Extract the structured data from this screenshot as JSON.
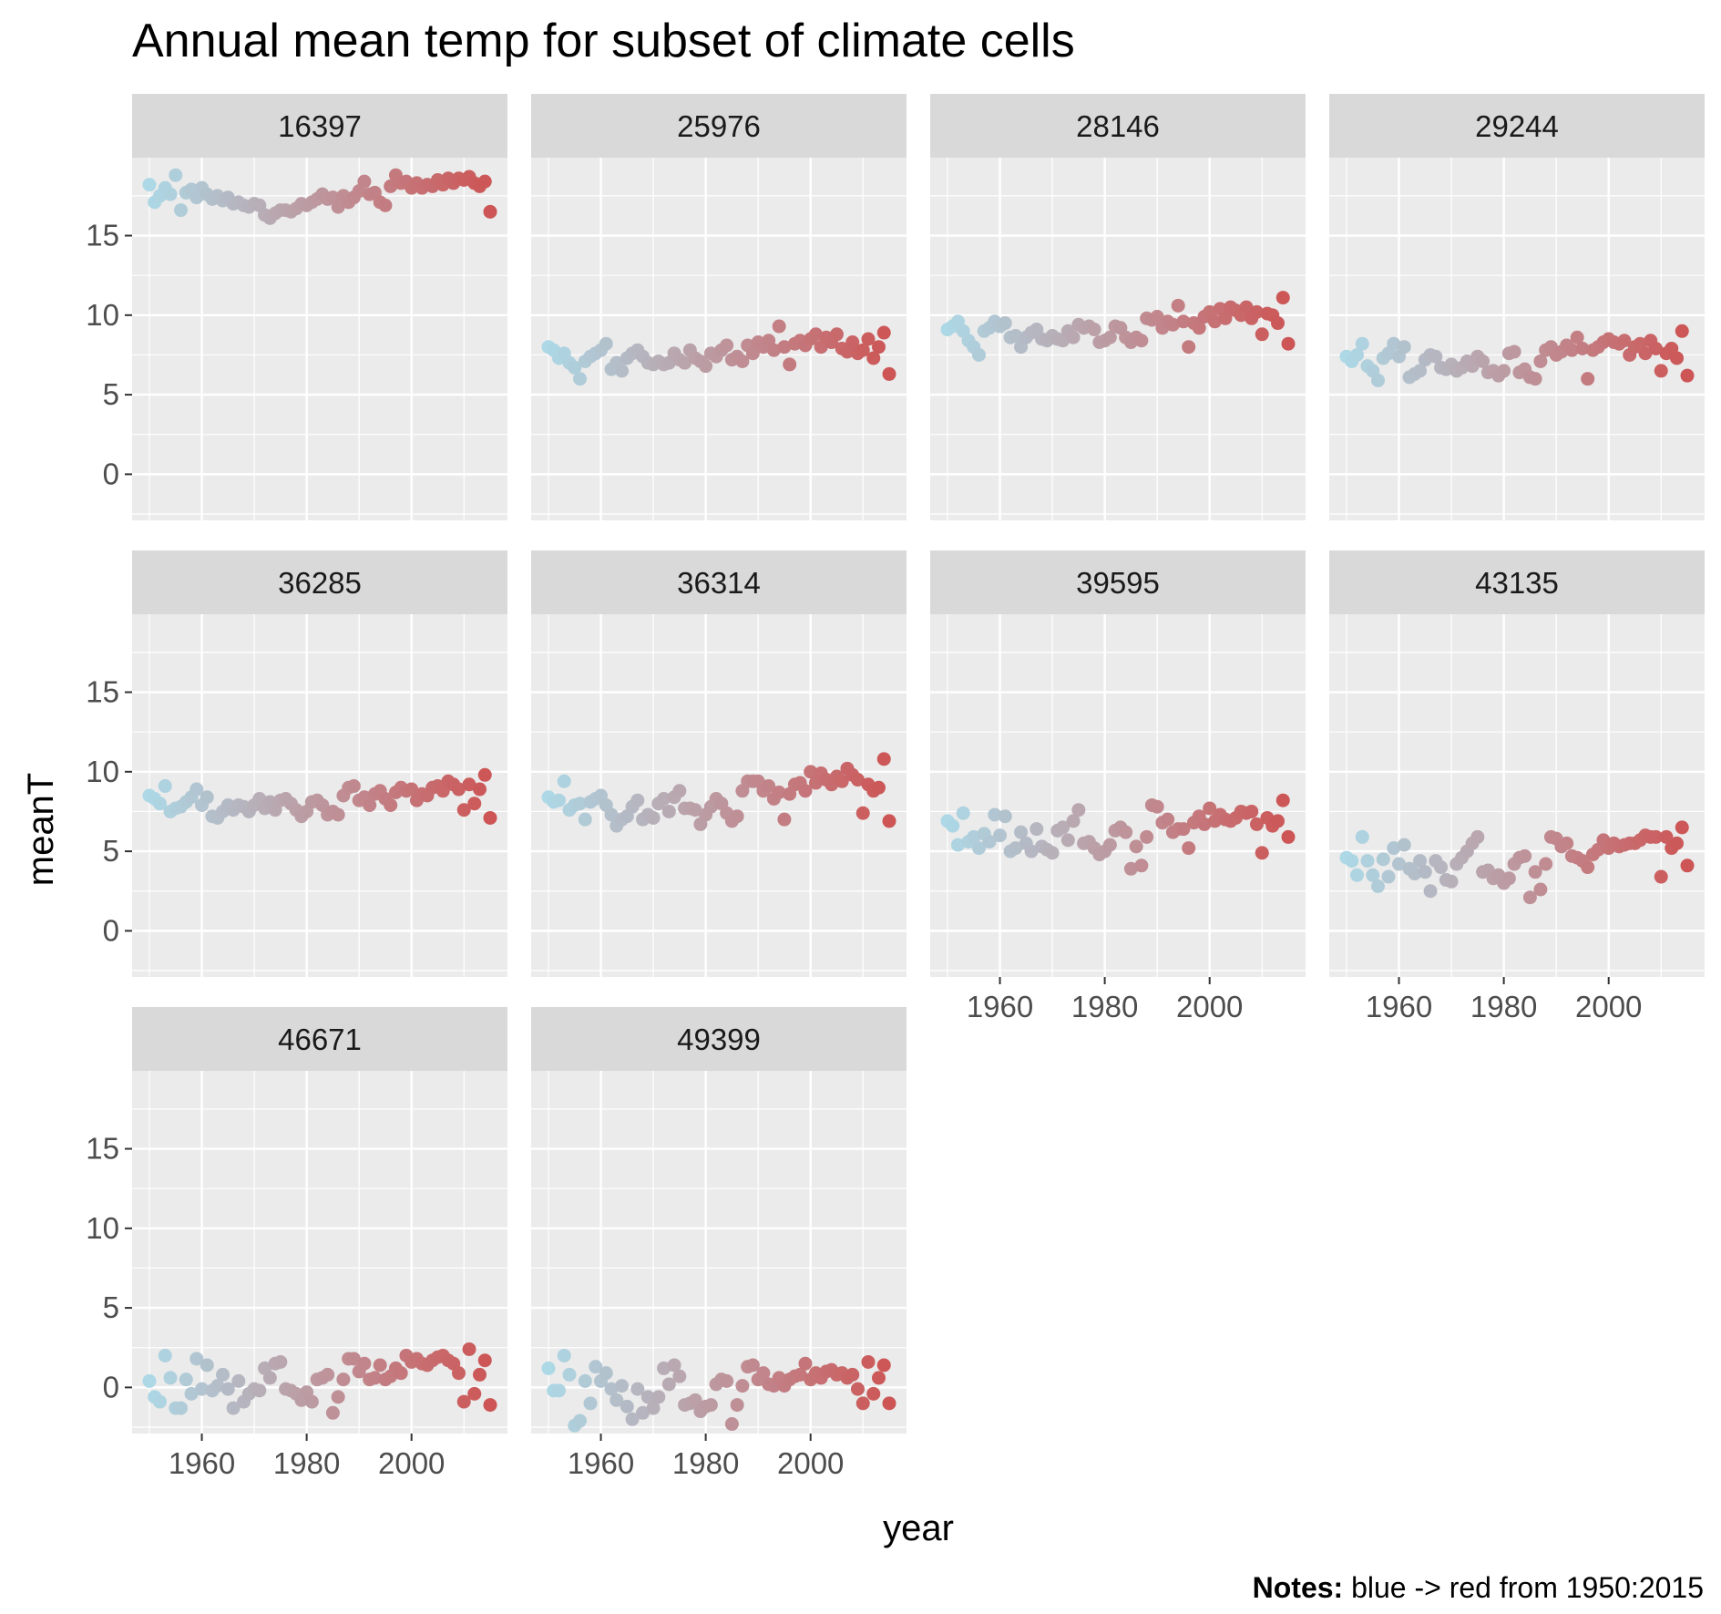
{
  "chart_data": {
    "type": "scatter",
    "title": "Annual mean temp for subset of climate cells",
    "xlabel": "year",
    "ylabel": "meanT",
    "caption_bold": "Notes:",
    "caption_rest": " blue -> red from 1950:2015",
    "xlim": [
      1946.7,
      2018.3
    ],
    "ylim": [
      -2.9,
      19.9
    ],
    "x_ticks": [
      1960,
      1980,
      2000
    ],
    "y_ticks": [
      0,
      5,
      10,
      15
    ],
    "color_scale": {
      "low": "#add8e6",
      "high": "#cd5555",
      "from": 1950,
      "to": 2015
    },
    "grid": true,
    "legend": "none",
    "panels": [
      {
        "label": "16397",
        "x_start": 1950,
        "values": [
          18.2,
          17.1,
          17.5,
          18.0,
          17.6,
          18.8,
          16.6,
          17.7,
          17.9,
          17.4,
          18.0,
          17.6,
          17.3,
          17.5,
          17.2,
          17.4,
          17.0,
          17.1,
          16.9,
          16.8,
          17.0,
          16.9,
          16.3,
          16.1,
          16.4,
          16.6,
          16.6,
          16.5,
          16.7,
          17.0,
          16.9,
          17.1,
          17.3,
          17.6,
          17.3,
          17.4,
          16.8,
          17.5,
          17.1,
          17.4,
          17.8,
          18.4,
          17.6,
          17.7,
          17.1,
          16.9,
          18.1,
          18.8,
          18.3,
          18.4,
          18.0,
          18.3,
          18.0,
          18.2,
          18.1,
          18.5,
          18.2,
          18.6,
          18.3,
          18.6,
          18.5,
          18.7,
          18.3,
          18.1,
          18.4,
          16.5
        ]
      },
      {
        "label": "25976",
        "x_start": 1950,
        "values": [
          8.0,
          7.8,
          7.3,
          7.6,
          7.0,
          6.7,
          6.0,
          7.1,
          7.4,
          7.6,
          7.8,
          8.2,
          6.6,
          7.0,
          6.5,
          7.3,
          7.6,
          7.8,
          7.4,
          7.0,
          6.9,
          7.1,
          6.9,
          7.0,
          7.6,
          7.2,
          7.0,
          7.8,
          7.3,
          7.1,
          6.8,
          7.6,
          7.4,
          7.8,
          8.1,
          7.2,
          7.4,
          7.1,
          8.1,
          7.6,
          8.3,
          8.0,
          8.4,
          7.8,
          9.3,
          8.0,
          6.9,
          8.2,
          8.4,
          8.1,
          8.5,
          8.8,
          8.0,
          8.6,
          8.3,
          8.8,
          7.9,
          7.7,
          8.3,
          7.6,
          7.8,
          8.5,
          7.3,
          8.0,
          8.9,
          6.3
        ]
      },
      {
        "label": "28146",
        "x_start": 1950,
        "values": [
          9.1,
          9.3,
          9.6,
          9.0,
          8.4,
          8.0,
          7.5,
          9.0,
          9.2,
          9.6,
          9.3,
          9.5,
          8.6,
          8.7,
          8.0,
          8.6,
          8.9,
          9.1,
          8.5,
          8.4,
          8.7,
          8.5,
          8.4,
          9.0,
          8.6,
          9.4,
          9.2,
          9.3,
          9.1,
          8.3,
          8.4,
          8.6,
          9.3,
          9.2,
          8.6,
          8.3,
          8.6,
          8.4,
          9.8,
          9.7,
          9.9,
          9.2,
          9.6,
          9.4,
          10.6,
          9.6,
          8.0,
          9.5,
          9.2,
          9.9,
          10.2,
          9.6,
          10.4,
          9.8,
          10.5,
          10.3,
          10.0,
          10.5,
          9.8,
          10.2,
          8.8,
          10.1,
          10.0,
          9.5,
          11.1,
          8.2
        ]
      },
      {
        "label": "29244",
        "x_start": 1950,
        "values": [
          7.4,
          7.1,
          7.5,
          8.2,
          6.8,
          6.5,
          5.9,
          7.3,
          7.6,
          8.2,
          7.4,
          8.0,
          6.1,
          6.3,
          6.5,
          7.2,
          7.5,
          7.4,
          6.7,
          6.6,
          6.9,
          6.5,
          6.7,
          7.1,
          6.8,
          7.4,
          7.1,
          6.4,
          6.5,
          6.2,
          6.5,
          7.6,
          7.7,
          6.4,
          6.6,
          6.1,
          6.0,
          7.1,
          7.8,
          8.0,
          7.5,
          7.7,
          8.1,
          7.8,
          8.6,
          7.9,
          6.0,
          7.8,
          8.0,
          8.3,
          8.5,
          8.3,
          8.2,
          8.4,
          7.5,
          8.0,
          8.2,
          7.6,
          8.4,
          7.9,
          6.5,
          7.6,
          7.9,
          7.3,
          9.0,
          6.2
        ]
      },
      {
        "label": "36285",
        "x_start": 1950,
        "values": [
          8.5,
          8.3,
          8.0,
          9.1,
          7.5,
          7.7,
          7.8,
          8.1,
          8.4,
          8.9,
          7.9,
          8.4,
          7.2,
          7.1,
          7.5,
          7.9,
          7.6,
          7.9,
          7.8,
          7.5,
          7.9,
          8.3,
          7.7,
          8.1,
          7.6,
          8.2,
          8.3,
          8.0,
          7.6,
          7.2,
          7.5,
          8.1,
          8.2,
          7.9,
          7.3,
          7.5,
          7.3,
          8.5,
          9.0,
          9.1,
          8.2,
          8.4,
          7.9,
          8.6,
          8.8,
          8.3,
          7.9,
          8.7,
          9.0,
          8.8,
          8.9,
          8.2,
          8.6,
          8.5,
          9.0,
          9.1,
          8.8,
          9.4,
          9.2,
          8.9,
          7.6,
          9.2,
          8.0,
          8.9,
          9.8,
          7.1
        ]
      },
      {
        "label": "36314",
        "x_start": 1950,
        "values": [
          8.4,
          8.1,
          8.2,
          9.4,
          7.6,
          7.9,
          8.0,
          7.0,
          8.1,
          8.3,
          8.5,
          7.9,
          7.3,
          6.6,
          7.0,
          7.2,
          7.8,
          8.2,
          7.0,
          7.3,
          7.1,
          8.0,
          8.3,
          7.5,
          8.4,
          8.8,
          7.7,
          7.7,
          7.6,
          6.7,
          7.3,
          7.8,
          8.3,
          8.0,
          7.4,
          6.9,
          7.2,
          8.8,
          9.4,
          9.4,
          9.4,
          8.8,
          9.1,
          8.3,
          8.7,
          7.0,
          8.6,
          9.2,
          9.3,
          8.8,
          10.0,
          9.3,
          9.9,
          9.5,
          9.2,
          9.7,
          9.4,
          10.2,
          9.8,
          9.5,
          7.4,
          9.2,
          8.8,
          9.0,
          10.8,
          6.9
        ]
      },
      {
        "label": "39595",
        "x_start": 1950,
        "values": [
          6.9,
          6.6,
          5.4,
          7.4,
          5.6,
          5.9,
          5.2,
          6.1,
          5.6,
          7.3,
          6.0,
          7.2,
          5.0,
          5.2,
          6.2,
          5.5,
          5.0,
          6.4,
          5.3,
          5.1,
          4.9,
          6.3,
          6.5,
          5.7,
          6.9,
          7.6,
          5.5,
          5.6,
          5.2,
          4.8,
          5.0,
          5.4,
          6.3,
          6.5,
          6.2,
          3.9,
          5.3,
          4.1,
          5.9,
          7.9,
          7.8,
          6.8,
          7.0,
          6.2,
          6.4,
          6.4,
          5.2,
          6.8,
          7.2,
          6.7,
          7.7,
          6.9,
          7.3,
          7.0,
          6.9,
          7.1,
          7.5,
          7.4,
          7.5,
          6.7,
          4.9,
          7.1,
          6.6,
          6.9,
          8.2,
          5.9
        ]
      },
      {
        "label": "43135",
        "x_start": 1950,
        "values": [
          4.6,
          4.4,
          3.5,
          5.9,
          4.4,
          3.5,
          2.8,
          4.5,
          3.4,
          5.2,
          4.2,
          5.4,
          3.9,
          3.6,
          4.4,
          3.7,
          2.5,
          4.4,
          4.0,
          3.2,
          3.1,
          4.2,
          4.6,
          5.0,
          5.5,
          5.9,
          3.7,
          3.8,
          3.3,
          3.5,
          3.0,
          3.3,
          4.2,
          4.6,
          4.7,
          2.1,
          3.7,
          2.6,
          4.2,
          5.9,
          5.8,
          5.3,
          5.5,
          4.7,
          4.6,
          4.4,
          4.0,
          4.8,
          5.1,
          5.7,
          5.2,
          5.5,
          5.3,
          5.4,
          5.5,
          5.5,
          5.7,
          6.0,
          5.9,
          5.9,
          3.4,
          5.9,
          5.2,
          5.5,
          6.5,
          4.1
        ]
      },
      {
        "label": "46671",
        "x_start": 1950,
        "values": [
          0.4,
          -0.6,
          -0.9,
          2.0,
          0.6,
          -1.3,
          -1.3,
          0.5,
          -0.4,
          1.8,
          -0.1,
          1.4,
          -0.2,
          0.1,
          0.8,
          -0.1,
          -1.3,
          0.4,
          -0.9,
          -0.4,
          -0.1,
          -0.2,
          1.2,
          0.6,
          1.5,
          1.6,
          -0.1,
          -0.2,
          -0.4,
          -0.8,
          -0.3,
          -0.9,
          0.5,
          0.6,
          0.8,
          -1.6,
          -0.6,
          0.5,
          1.8,
          1.8,
          1.0,
          1.5,
          0.5,
          0.6,
          1.4,
          0.5,
          0.7,
          1.2,
          0.9,
          2.0,
          1.6,
          1.8,
          1.5,
          1.4,
          1.7,
          1.9,
          2.0,
          1.7,
          1.5,
          0.9,
          -0.9,
          2.4,
          -0.4,
          0.8,
          1.7,
          -1.1
        ]
      },
      {
        "label": "49399",
        "x_start": 1950,
        "values": [
          1.2,
          -0.2,
          -0.2,
          2.0,
          0.8,
          -2.4,
          -2.1,
          0.4,
          -1.0,
          1.3,
          0.4,
          0.9,
          -0.1,
          -0.8,
          0.1,
          -1.2,
          -2.0,
          -0.1,
          -1.6,
          -0.6,
          -1.3,
          -0.6,
          1.2,
          0.2,
          1.4,
          0.7,
          -1.1,
          -1.0,
          -0.8,
          -1.5,
          -1.2,
          -1.1,
          0.2,
          0.5,
          0.4,
          -2.3,
          -1.1,
          0.1,
          1.3,
          1.4,
          0.5,
          0.9,
          0.2,
          0.1,
          0.6,
          0.1,
          0.5,
          0.7,
          0.8,
          1.5,
          0.5,
          0.9,
          0.6,
          1.0,
          1.1,
          0.8,
          0.9,
          0.6,
          0.8,
          -0.1,
          -1.0,
          1.6,
          -0.4,
          0.6,
          1.4,
          -1.0
        ]
      }
    ]
  }
}
